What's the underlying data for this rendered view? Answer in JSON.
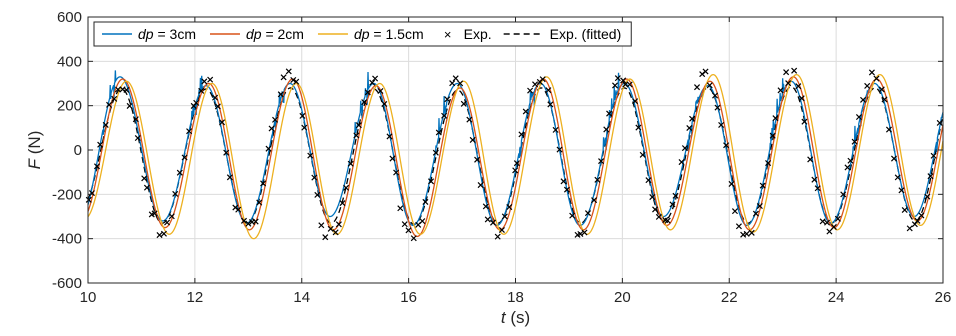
{
  "chart_data": {
    "type": "line",
    "title": "",
    "xlabel_var": "t",
    "xlabel_unit": " (s)",
    "ylabel_var": "F",
    "ylabel_unit": " (N)",
    "xlim": [
      10,
      26
    ],
    "ylim": [
      -600,
      600
    ],
    "x_ticks": [
      "10",
      "12",
      "14",
      "16",
      "18",
      "20",
      "22",
      "24",
      "26"
    ],
    "y_ticks": [
      "600",
      "400",
      "200",
      "0",
      "-200",
      "-400",
      "-600"
    ],
    "grid": true,
    "legend_position": "top-left",
    "period_s": 1.56,
    "series": [
      {
        "legend_var": "dp",
        "legend_rest": " = 3cm",
        "color": "#0072BD",
        "style": "line",
        "peaks": [
          [
            10.6,
            330
          ],
          [
            11.4,
            -320
          ],
          [
            12.21,
            290
          ],
          [
            12.97,
            -330
          ],
          [
            13.78,
            300
          ],
          [
            14.53,
            -300
          ],
          [
            15.35,
            300
          ],
          [
            16.08,
            -340
          ],
          [
            16.91,
            300
          ],
          [
            17.65,
            -340
          ],
          [
            18.47,
            300
          ],
          [
            19.21,
            -340
          ],
          [
            20.04,
            300
          ],
          [
            20.77,
            -300
          ],
          [
            21.6,
            290
          ],
          [
            22.33,
            -340
          ],
          [
            23.16,
            310
          ],
          [
            23.9,
            -330
          ],
          [
            24.72,
            300
          ],
          [
            25.46,
            -300
          ]
        ]
      },
      {
        "legend_var": "dp",
        "legend_rest": " = 2cm",
        "color": "#D95319",
        "style": "line",
        "peaks": [
          [
            10.65,
            320
          ],
          [
            11.44,
            -350
          ],
          [
            12.26,
            300
          ],
          [
            13.02,
            -360
          ],
          [
            13.83,
            320
          ],
          [
            14.59,
            -360
          ],
          [
            15.39,
            290
          ],
          [
            16.16,
            -390
          ],
          [
            16.96,
            280
          ],
          [
            17.71,
            -360
          ],
          [
            18.52,
            320
          ],
          [
            19.27,
            -360
          ],
          [
            20.08,
            320
          ],
          [
            20.83,
            -340
          ],
          [
            21.64,
            310
          ],
          [
            22.38,
            -360
          ],
          [
            23.2,
            330
          ],
          [
            23.96,
            -350
          ],
          [
            24.76,
            320
          ],
          [
            25.52,
            -320
          ]
        ]
      },
      {
        "legend_var": "dp",
        "legend_rest": " = 1.5cm",
        "color": "#EDB120",
        "style": "line",
        "peaks": [
          [
            10.72,
            310
          ],
          [
            11.52,
            -380
          ],
          [
            12.32,
            300
          ],
          [
            13.1,
            -400
          ],
          [
            13.9,
            300
          ],
          [
            14.66,
            -380
          ],
          [
            15.46,
            300
          ],
          [
            16.22,
            -380
          ],
          [
            17.03,
            310
          ],
          [
            17.78,
            -380
          ],
          [
            18.58,
            330
          ],
          [
            19.34,
            -380
          ],
          [
            20.14,
            320
          ],
          [
            20.9,
            -360
          ],
          [
            21.7,
            340
          ],
          [
            22.45,
            -370
          ],
          [
            23.26,
            340
          ],
          [
            24.02,
            -360
          ],
          [
            24.82,
            340
          ],
          [
            25.58,
            -340
          ]
        ]
      },
      {
        "legend_var": "",
        "legend_rest": "Exp.",
        "color": "#000000",
        "style": "markers",
        "peaks": [
          [
            10.62,
            300
          ],
          [
            11.38,
            -370
          ],
          [
            12.22,
            320
          ],
          [
            12.97,
            -360
          ],
          [
            13.78,
            330
          ],
          [
            14.52,
            -380
          ],
          [
            15.33,
            310
          ],
          [
            16.08,
            -390
          ],
          [
            16.9,
            290
          ],
          [
            17.63,
            -370
          ],
          [
            18.47,
            330
          ],
          [
            19.2,
            -360
          ],
          [
            20.02,
            320
          ],
          [
            20.75,
            -330
          ],
          [
            21.58,
            330
          ],
          [
            22.32,
            -380
          ],
          [
            23.14,
            340
          ],
          [
            23.88,
            -350
          ],
          [
            24.7,
            330
          ],
          [
            25.45,
            -350
          ]
        ]
      },
      {
        "legend_var": "",
        "legend_rest": "Exp. (fitted)",
        "color": "#000000",
        "style": "dashed",
        "peaks": [
          [
            10.63,
            275
          ],
          [
            11.39,
            -330
          ],
          [
            12.21,
            275
          ],
          [
            12.98,
            -330
          ],
          [
            13.79,
            280
          ],
          [
            14.55,
            -330
          ],
          [
            15.35,
            275
          ],
          [
            16.1,
            -335
          ],
          [
            16.92,
            270
          ],
          [
            17.67,
            -330
          ],
          [
            18.48,
            280
          ],
          [
            19.22,
            -330
          ],
          [
            20.04,
            280
          ],
          [
            20.78,
            -320
          ],
          [
            21.6,
            280
          ],
          [
            22.35,
            -330
          ],
          [
            23.16,
            285
          ],
          [
            23.91,
            -330
          ],
          [
            24.73,
            280
          ],
          [
            25.48,
            -320
          ]
        ]
      }
    ]
  }
}
